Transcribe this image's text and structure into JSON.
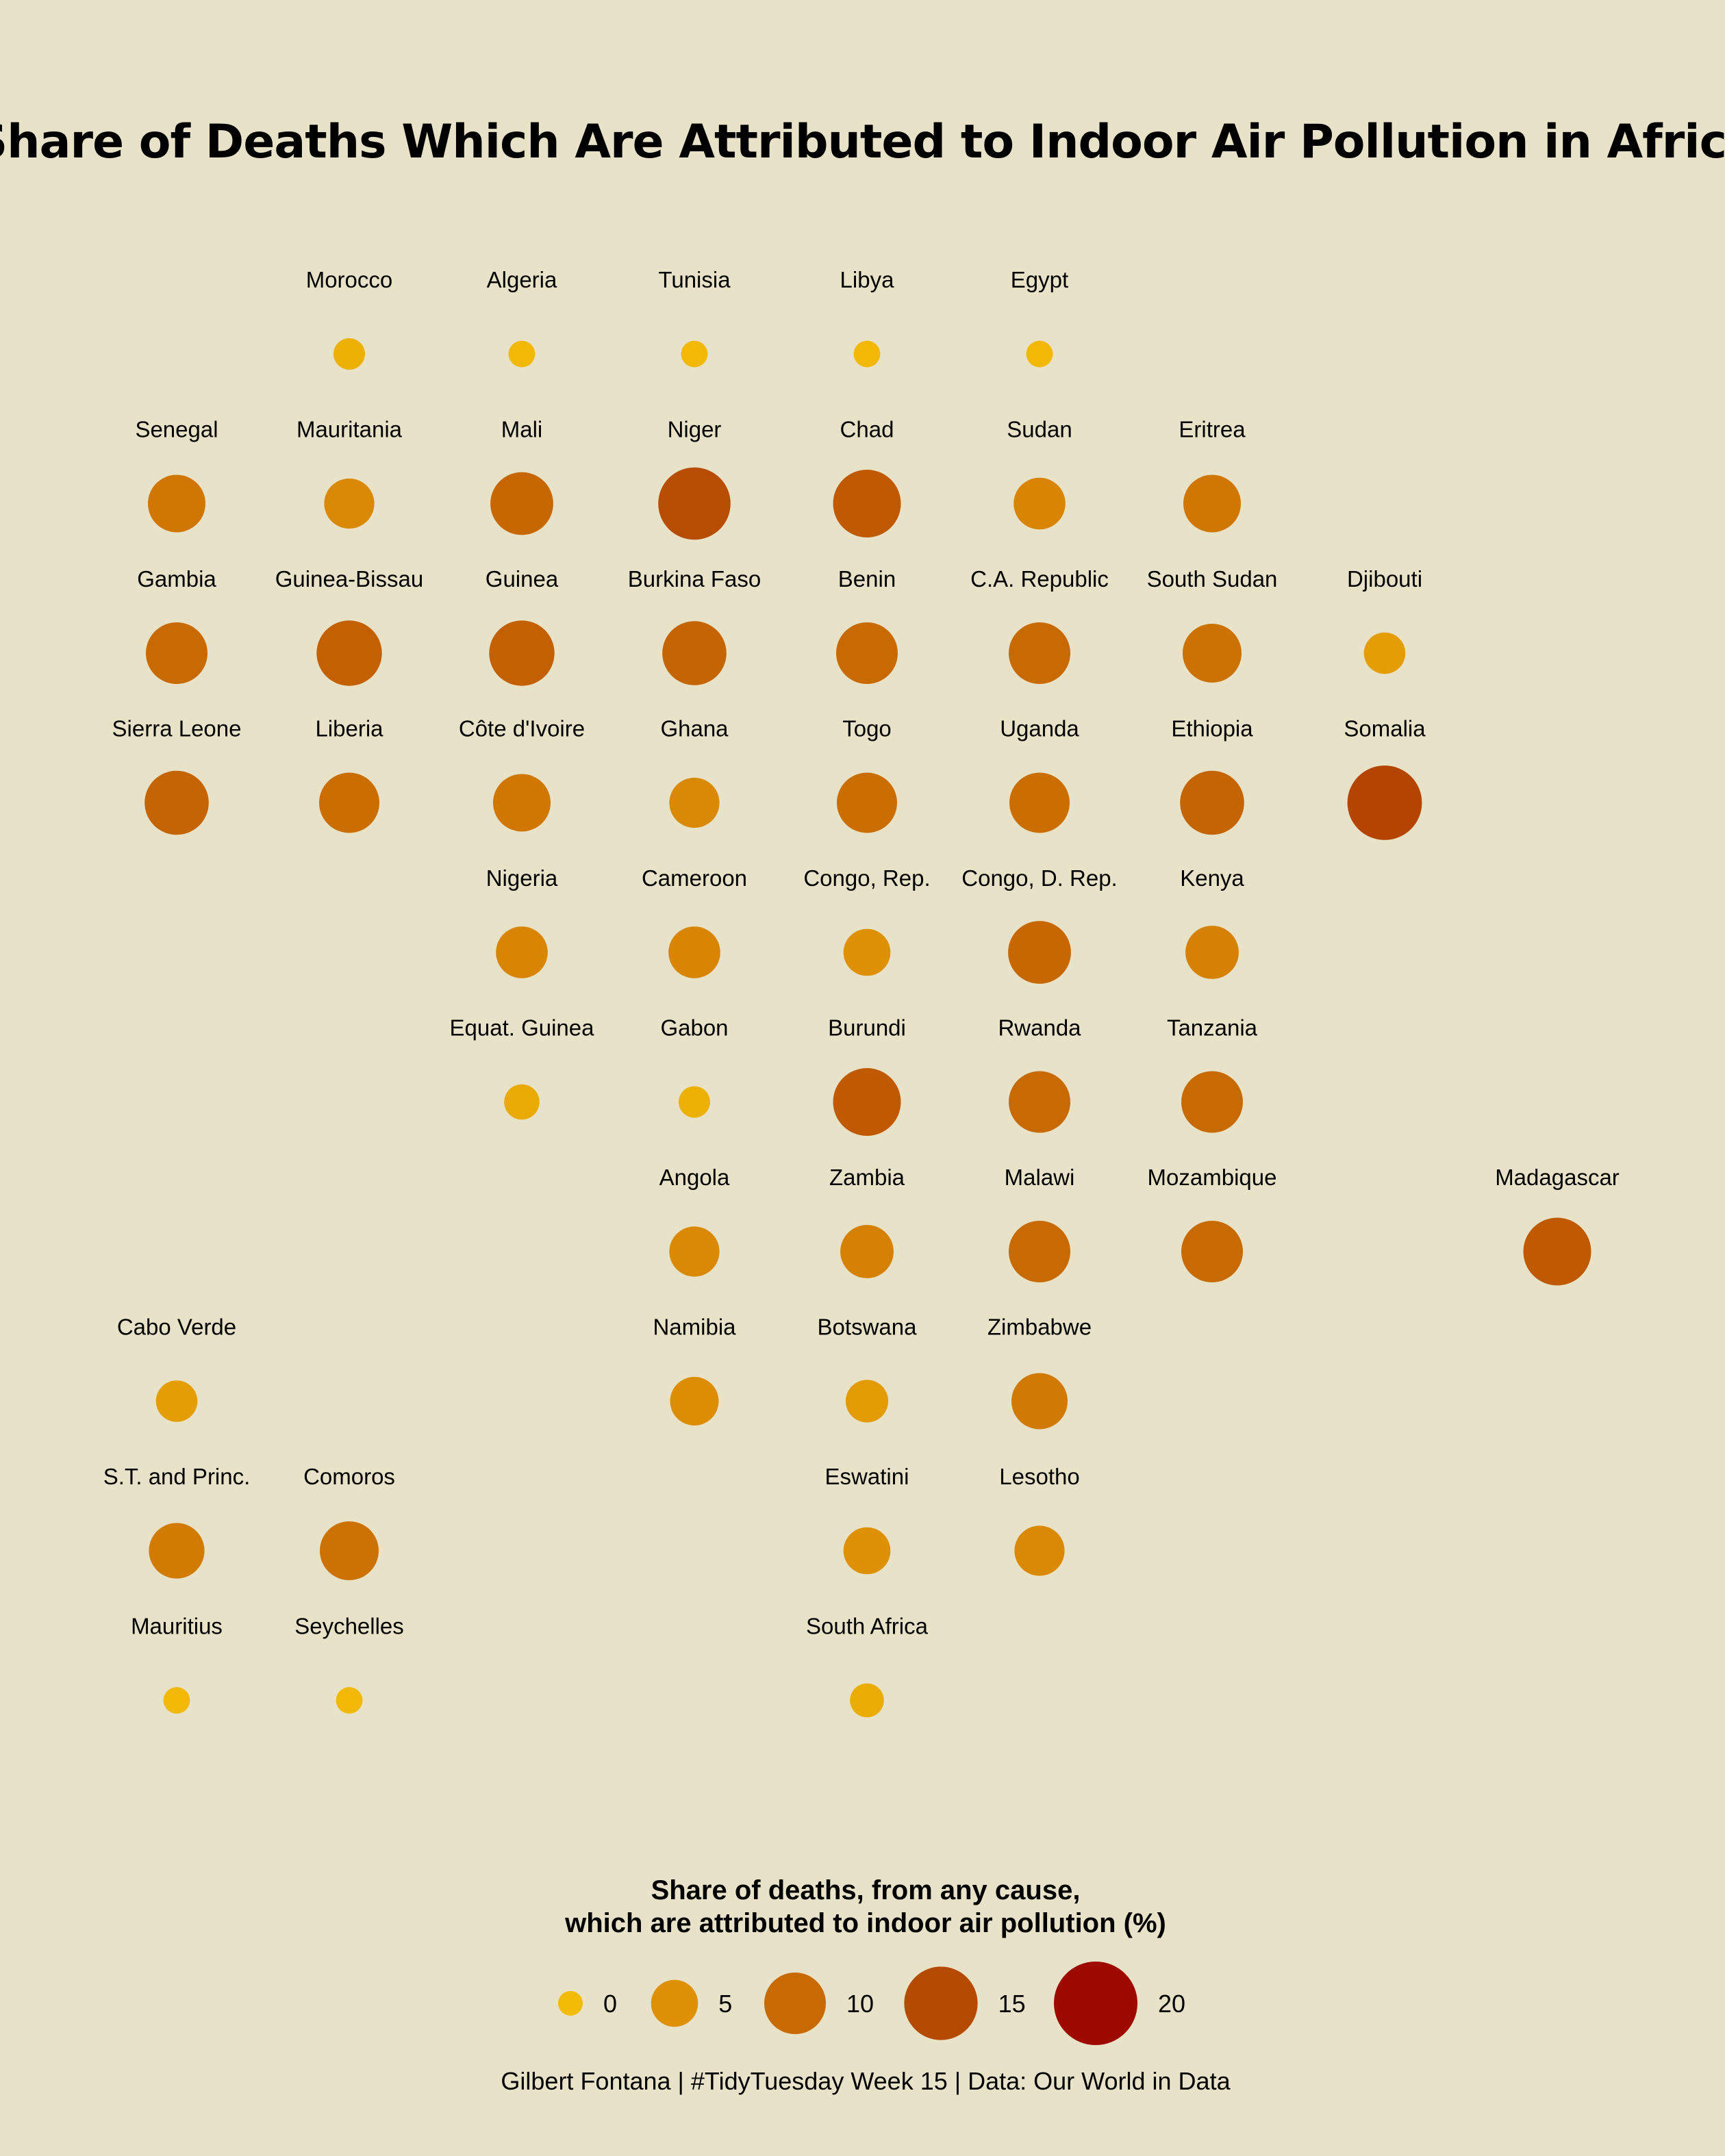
{
  "chart_data": {
    "type": "scatter",
    "title": "Share of Deaths Which Are Attributed to Indoor Air Pollution in Africa",
    "size_scale": {
      "domain": [
        0,
        20
      ],
      "legend_values": [
        0,
        5,
        10,
        15,
        20
      ]
    },
    "legend_title_line1": "Share of deaths, from any cause,",
    "legend_title_line2": "which are attributed to indoor air pollution (%)",
    "caption": "Gilbert Fontana | #TidyTuesday Week 15 | Data: Our World in Data",
    "colors": [
      "#f2bb05",
      "#de9104",
      "#c86a02",
      "#b54a02",
      "#9e0a00"
    ],
    "countries": [
      {
        "name": "Morocco",
        "col": 2,
        "row": 1,
        "value": 1.2
      },
      {
        "name": "Algeria",
        "col": 3,
        "row": 1,
        "value": 0.3
      },
      {
        "name": "Tunisia",
        "col": 4,
        "row": 1,
        "value": 0.3
      },
      {
        "name": "Libya",
        "col": 5,
        "row": 1,
        "value": 0.3
      },
      {
        "name": "Egypt",
        "col": 6,
        "row": 1,
        "value": 0.3
      },
      {
        "name": "Senegal",
        "col": 1,
        "row": 2,
        "value": 8.5
      },
      {
        "name": "Mauritania",
        "col": 2,
        "row": 2,
        "value": 6.0
      },
      {
        "name": "Mali",
        "col": 3,
        "row": 2,
        "value": 10.5
      },
      {
        "name": "Niger",
        "col": 4,
        "row": 2,
        "value": 14.5
      },
      {
        "name": "Chad",
        "col": 5,
        "row": 2,
        "value": 12.5
      },
      {
        "name": "Sudan",
        "col": 6,
        "row": 2,
        "value": 6.5
      },
      {
        "name": "Eritrea",
        "col": 7,
        "row": 2,
        "value": 8.5
      },
      {
        "name": "Gambia",
        "col": 1,
        "row": 3,
        "value": 10.0
      },
      {
        "name": "Guinea-Bissau",
        "col": 2,
        "row": 3,
        "value": 11.5
      },
      {
        "name": "Guinea",
        "col": 3,
        "row": 3,
        "value": 11.5
      },
      {
        "name": "Burkina Faso",
        "col": 4,
        "row": 3,
        "value": 11.0
      },
      {
        "name": "Benin",
        "col": 5,
        "row": 3,
        "value": 10.0
      },
      {
        "name": "C.A. Republic",
        "col": 6,
        "row": 3,
        "value": 10.0
      },
      {
        "name": "South Sudan",
        "col": 7,
        "row": 3,
        "value": 9.0
      },
      {
        "name": "Djibouti",
        "col": 8,
        "row": 3,
        "value": 3.5
      },
      {
        "name": "Sierra Leone",
        "col": 1,
        "row": 4,
        "value": 11.0
      },
      {
        "name": "Liberia",
        "col": 2,
        "row": 4,
        "value": 9.5
      },
      {
        "name": "Côte d'Ivoire",
        "col": 3,
        "row": 4,
        "value": 8.5
      },
      {
        "name": "Ghana",
        "col": 4,
        "row": 4,
        "value": 6.0
      },
      {
        "name": "Togo",
        "col": 5,
        "row": 4,
        "value": 9.5
      },
      {
        "name": "Uganda",
        "col": 6,
        "row": 4,
        "value": 9.5
      },
      {
        "name": "Ethiopia",
        "col": 7,
        "row": 4,
        "value": 11.0
      },
      {
        "name": "Somalia",
        "col": 8,
        "row": 4,
        "value": 15.5
      },
      {
        "name": "Nigeria",
        "col": 3,
        "row": 5,
        "value": 6.5
      },
      {
        "name": "Cameroon",
        "col": 4,
        "row": 5,
        "value": 6.5
      },
      {
        "name": "Congo, Rep.",
        "col": 5,
        "row": 5,
        "value": 5.0
      },
      {
        "name": "Congo, D. Rep.",
        "col": 6,
        "row": 5,
        "value": 10.5
      },
      {
        "name": "Kenya",
        "col": 7,
        "row": 5,
        "value": 7.0
      },
      {
        "name": "Equat. Guinea",
        "col": 3,
        "row": 6,
        "value": 2.0
      },
      {
        "name": "Gabon",
        "col": 4,
        "row": 6,
        "value": 1.2
      },
      {
        "name": "Burundi",
        "col": 5,
        "row": 6,
        "value": 12.5
      },
      {
        "name": "Rwanda",
        "col": 6,
        "row": 6,
        "value": 10.0
      },
      {
        "name": "Tanzania",
        "col": 7,
        "row": 6,
        "value": 10.0
      },
      {
        "name": "Angola",
        "col": 4,
        "row": 7,
        "value": 6.0
      },
      {
        "name": "Zambia",
        "col": 5,
        "row": 7,
        "value": 7.0
      },
      {
        "name": "Malawi",
        "col": 6,
        "row": 7,
        "value": 10.0
      },
      {
        "name": "Mozambique",
        "col": 7,
        "row": 7,
        "value": 10.0
      },
      {
        "name": "Madagascar",
        "col": 9,
        "row": 7,
        "value": 12.5
      },
      {
        "name": "Cabo Verde",
        "col": 1,
        "row": 8,
        "value": 3.5
      },
      {
        "name": "Namibia",
        "col": 4,
        "row": 8,
        "value": 5.5
      },
      {
        "name": "Botswana",
        "col": 5,
        "row": 8,
        "value": 3.8
      },
      {
        "name": "Zimbabwe",
        "col": 6,
        "row": 8,
        "value": 8.0
      },
      {
        "name": "S.T. and Princ.",
        "col": 1,
        "row": 9,
        "value": 7.8
      },
      {
        "name": "Comoros",
        "col": 2,
        "row": 9,
        "value": 9.0
      },
      {
        "name": "Eswatini",
        "col": 5,
        "row": 9,
        "value": 5.0
      },
      {
        "name": "Lesotho",
        "col": 6,
        "row": 9,
        "value": 6.0
      },
      {
        "name": "Mauritius",
        "col": 1,
        "row": 10,
        "value": 0.3
      },
      {
        "name": "Seychelles",
        "col": 2,
        "row": 10,
        "value": 0.3
      },
      {
        "name": "South Africa",
        "col": 5,
        "row": 10,
        "value": 1.7
      }
    ]
  }
}
